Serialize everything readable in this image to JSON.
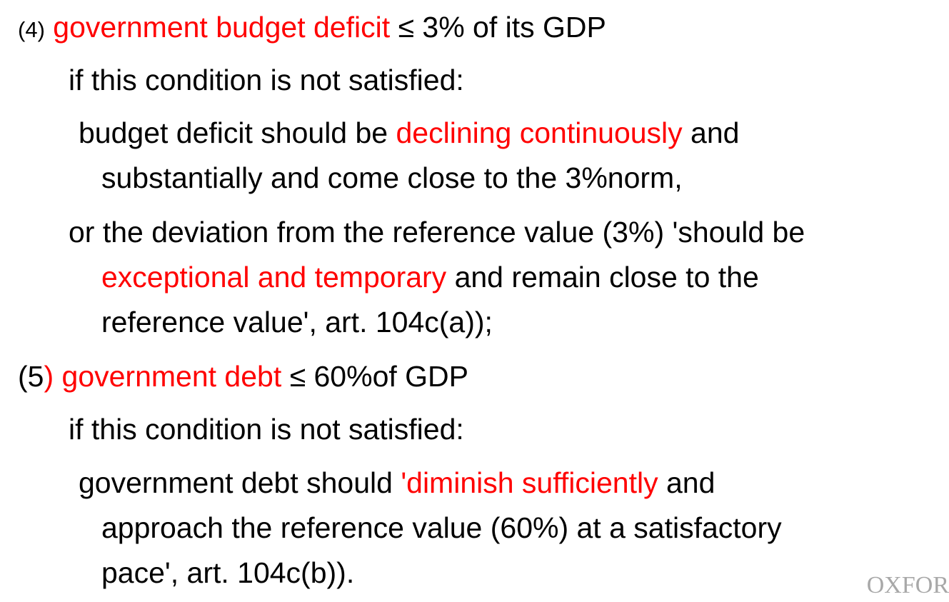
{
  "item4": {
    "number": "(4)",
    "heading_red": "government budget deficit",
    "heading_rest": " ≤ 3% of its GDP",
    "condition": "if this condition is not satisfied:",
    "a_line1_pre": "budget deficit should be ",
    "a_line1_red": "declining continuously",
    "a_line1_post": " and",
    "a_line2": "substantially and come close to the 3%norm,",
    "b_line1": "or the deviation from the reference value (3%) 'should be",
    "b_line2_red": "exceptional and temporary",
    "b_line2_post": " and remain close to the",
    "b_line3": "reference value', art. 104c(a));"
  },
  "item5": {
    "number_open": "(5",
    "number_close_red": ")",
    "heading_red": " government debt",
    "heading_rest": " ≤  60%of GDP",
    "condition": "if this condition is not satisfied:",
    "a_line1_pre": "government debt should ",
    "a_line1_red": "'diminish sufficiently",
    "a_line1_post": " and",
    "a_line2": "approach the reference value (60%) at a satisfactory",
    "a_line3": "pace', art. 104c(b))."
  },
  "watermark": "OXFOR",
  "colors": {
    "text": "#000000",
    "highlight": "#ff0000",
    "watermark": "#a8a8a8"
  }
}
